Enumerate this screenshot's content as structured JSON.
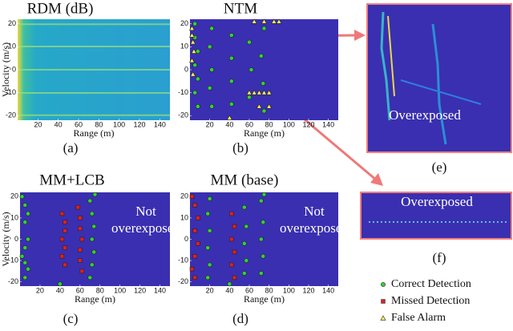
{
  "chart_data": [
    {
      "type": "heatmap",
      "title": "RDM (dB)",
      "caption": "(a)",
      "xlabel": "Range (m)",
      "ylabel": "Velocity (m/s)",
      "xlim": [
        0,
        150
      ],
      "ylim": [
        -22,
        22
      ],
      "xticks": [
        20,
        40,
        60,
        80,
        100,
        120,
        140
      ],
      "yticks": [
        20,
        10,
        0,
        -10,
        -20
      ]
    },
    {
      "type": "scatter",
      "title": "NTM",
      "caption": "(b)",
      "xlabel": "Range (m)",
      "xlim": [
        0,
        150
      ],
      "ylim": [
        -22,
        22
      ],
      "xticks": [
        20,
        40,
        60,
        80,
        100,
        120,
        140
      ],
      "yticks": [
        20,
        10,
        0,
        -10,
        -20
      ],
      "series": [
        {
          "shape": "circle",
          "x": [
            5,
            5,
            8,
            5,
            8,
            5,
            8,
            22,
            20,
            22,
            20,
            22,
            42,
            42,
            42,
            42,
            60,
            62,
            60,
            75,
            75,
            72,
            74
          ],
          "y": [
            20,
            14,
            8,
            2,
            -4,
            -10,
            -16,
            18,
            10,
            0,
            -8,
            -16,
            15,
            5,
            -5,
            -15,
            12,
            0,
            -12,
            18,
            -18,
            6,
            -6
          ]
        },
        {
          "shape": "triangle",
          "x": [
            2,
            3,
            4,
            2,
            3,
            2,
            60,
            65,
            70,
            75,
            80,
            65,
            75,
            85,
            90,
            40,
            70,
            80
          ],
          "y": [
            18,
            12,
            8,
            4,
            -2,
            15,
            -10,
            -10,
            -10,
            -10,
            -10,
            21,
            21,
            21,
            21,
            -21,
            -16,
            -16
          ]
        }
      ]
    },
    {
      "type": "scatter",
      "title": "MM+LCB",
      "caption": "(c)",
      "xlabel": "Range (m)",
      "ylabel": "Velocity (m/s)",
      "xlim": [
        0,
        150
      ],
      "ylim": [
        -22,
        22
      ],
      "xticks": [
        20,
        40,
        60,
        80,
        100,
        120,
        140
      ],
      "yticks": [
        20,
        10,
        0,
        -10,
        -20
      ],
      "annotation": [
        "Not",
        "overexposed"
      ],
      "series": [
        {
          "shape": "circle",
          "x": [
            2,
            5,
            8,
            5,
            8,
            5,
            2,
            5,
            8,
            5,
            70,
            72,
            74,
            72,
            74,
            72,
            70,
            75,
            40
          ],
          "y": [
            20,
            16,
            12,
            8,
            0,
            -4,
            -8,
            -11,
            -14,
            -18,
            18,
            12,
            6,
            0,
            -6,
            -12,
            -18,
            21,
            -21
          ]
        },
        {
          "shape": "square",
          "x": [
            42,
            45,
            45,
            42,
            45,
            42,
            45,
            58,
            60,
            60,
            62,
            60,
            60,
            62
          ],
          "y": [
            12,
            8,
            4,
            0,
            -4,
            -8,
            -12,
            15,
            10,
            5,
            0,
            -5,
            -10,
            -15
          ]
        }
      ]
    },
    {
      "type": "scatter",
      "title": "MM (base)",
      "caption": "(d)",
      "xlabel": "Range (m)",
      "xlim": [
        0,
        150
      ],
      "ylim": [
        -22,
        22
      ],
      "xticks": [
        20,
        40,
        60,
        80,
        100,
        120,
        140
      ],
      "yticks": [
        20,
        10,
        0,
        -10,
        -20
      ],
      "annotation": [
        "Not",
        "overexposed"
      ],
      "series": [
        {
          "shape": "circle",
          "x": [
            20,
            18,
            20,
            18,
            20,
            18,
            55,
            57,
            55,
            57,
            55,
            72,
            74,
            72,
            74,
            72,
            75,
            40
          ],
          "y": [
            19,
            12,
            4,
            -4,
            -12,
            -18,
            15,
            6,
            -2,
            -10,
            -16,
            18,
            8,
            0,
            -8,
            -16,
            21,
            -21
          ]
        },
        {
          "shape": "square",
          "x": [
            2,
            5,
            8,
            5,
            8,
            5,
            2,
            5,
            42,
            45,
            42,
            45,
            42,
            45
          ],
          "y": [
            20,
            16,
            10,
            4,
            -2,
            -8,
            -14,
            -18,
            12,
            6,
            0,
            -6,
            -12,
            -18
          ]
        }
      ]
    }
  ],
  "zoom": [
    {
      "label": "Overexposed",
      "caption": "(e)"
    },
    {
      "label": "Overexposed",
      "caption": "(f)"
    }
  ],
  "legend": [
    {
      "name": "Correct Detection",
      "shape": "circle",
      "color": "#33d133"
    },
    {
      "name": "Missed Detection",
      "shape": "square",
      "color": "#e02020"
    },
    {
      "name": "False Alarm",
      "shape": "triangle",
      "color": "#f5f060"
    }
  ]
}
